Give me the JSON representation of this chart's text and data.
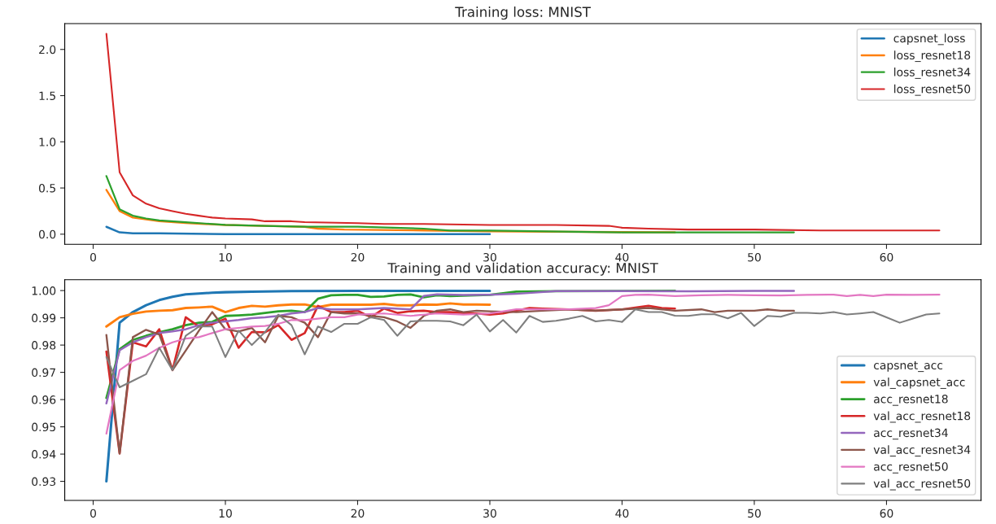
{
  "chart_data": [
    {
      "type": "line",
      "title": "Training loss: MNIST",
      "xlim": [
        -2.15,
        67.15
      ],
      "xticks": [
        0,
        10,
        20,
        30,
        40,
        50,
        60
      ],
      "ylim": [
        -0.11,
        2.28
      ],
      "yticks": [
        {
          "value": 0,
          "label": "0.0"
        },
        0.5,
        {
          "value": 1,
          "label": "1.0"
        },
        1.5,
        {
          "value": 2,
          "label": "2.0"
        }
      ],
      "legend": "top right",
      "grid": false,
      "series": [
        {
          "name": "capsnet_loss",
          "color": "#1f77b4",
          "x": [
            1,
            2,
            3,
            5,
            10,
            20,
            30
          ],
          "values": [
            0.08,
            0.02,
            0.01,
            0.01,
            0.0,
            0.0,
            0.0
          ]
        },
        {
          "name": "loss_resnet18",
          "color": "#ff7f0e",
          "x": [
            1,
            2,
            3,
            4,
            5,
            7,
            10,
            13,
            16,
            17,
            19,
            25,
            30,
            44
          ],
          "values": [
            0.48,
            0.25,
            0.18,
            0.16,
            0.14,
            0.12,
            0.1,
            0.09,
            0.08,
            0.06,
            0.05,
            0.04,
            0.03,
            0.02
          ]
        },
        {
          "name": "loss_resnet34",
          "color": "#2ca02c",
          "x": [
            1,
            2,
            3,
            4,
            5,
            7,
            10,
            13,
            16,
            20,
            25,
            27,
            30,
            40,
            53
          ],
          "values": [
            0.63,
            0.27,
            0.2,
            0.17,
            0.15,
            0.13,
            0.1,
            0.09,
            0.08,
            0.08,
            0.06,
            0.04,
            0.04,
            0.02,
            0.02
          ]
        },
        {
          "name": "loss_resnet50",
          "color": "#d62728",
          "x": [
            1,
            2,
            3,
            4,
            5,
            6,
            7,
            8,
            9,
            10,
            12,
            13,
            15,
            16,
            20,
            22,
            25,
            30,
            35,
            39,
            40,
            42,
            45,
            50,
            55,
            60,
            64
          ],
          "values": [
            2.17,
            0.67,
            0.42,
            0.33,
            0.28,
            0.25,
            0.22,
            0.2,
            0.18,
            0.17,
            0.16,
            0.14,
            0.14,
            0.13,
            0.12,
            0.11,
            0.11,
            0.1,
            0.1,
            0.09,
            0.07,
            0.06,
            0.05,
            0.05,
            0.04,
            0.04,
            0.04
          ]
        }
      ]
    },
    {
      "type": "line",
      "title": "Training and validation accuracy: MNIST",
      "xlim": [
        -2.15,
        67.15
      ],
      "xticks": [
        0,
        10,
        20,
        30,
        40,
        50,
        60
      ],
      "ylim": [
        0.923,
        1.004
      ],
      "yticks": [
        0.93,
        0.94,
        0.95,
        0.96,
        0.97,
        0.98,
        0.99,
        {
          "value": 1.0,
          "label": "1.00"
        }
      ],
      "legend": "bottom right",
      "grid": false,
      "series": [
        {
          "name": "capsnet_acc",
          "color": "#1f77b4",
          "x": [
            1,
            2,
            3,
            4,
            5,
            6,
            7,
            8,
            9,
            10,
            12,
            15,
            20,
            30
          ],
          "values": [
            0.93,
            0.9882,
            0.9921,
            0.9946,
            0.9965,
            0.9977,
            0.9986,
            0.9989,
            0.9992,
            0.9994,
            0.9996,
            0.9998,
            0.9999,
            0.9999
          ]
        },
        {
          "name": "val_capsnet_acc",
          "color": "#ff7f0e",
          "x": [
            1,
            2,
            3,
            4,
            5,
            6,
            7,
            8,
            9,
            10,
            11,
            12,
            13,
            14,
            15,
            16,
            17,
            18,
            19,
            20,
            21,
            22,
            23,
            24,
            25,
            26,
            27,
            28,
            29,
            30
          ],
          "values": [
            0.9868,
            0.9902,
            0.9915,
            0.9923,
            0.9926,
            0.9928,
            0.9936,
            0.9938,
            0.9941,
            0.9921,
            0.9936,
            0.9944,
            0.9941,
            0.9946,
            0.9949,
            0.9949,
            0.9939,
            0.9948,
            0.9948,
            0.9948,
            0.9948,
            0.9951,
            0.9946,
            0.9946,
            0.9949,
            0.9948,
            0.9953,
            0.9949,
            0.9949,
            0.9948
          ]
        },
        {
          "name": "acc_resnet18",
          "color": "#2ca02c",
          "x": [
            1,
            2,
            3,
            4,
            5,
            6,
            7,
            8,
            9,
            10,
            11,
            12,
            13,
            14,
            15,
            16,
            17,
            18,
            19,
            20,
            21,
            22,
            23,
            24,
            25,
            26,
            27,
            28,
            30,
            32,
            35,
            44
          ],
          "values": [
            0.9606,
            0.9785,
            0.9819,
            0.9834,
            0.9847,
            0.9858,
            0.9873,
            0.9882,
            0.9885,
            0.9907,
            0.9909,
            0.9912,
            0.9918,
            0.9924,
            0.9926,
            0.9921,
            0.997,
            0.9983,
            0.9984,
            0.9984,
            0.9977,
            0.9978,
            0.9984,
            0.9986,
            0.9975,
            0.9983,
            0.998,
            0.9981,
            0.9984,
            0.9996,
            0.9998,
            0.9999
          ]
        },
        {
          "name": "val_acc_resnet18",
          "color": "#d62728",
          "x": [
            1,
            2,
            3,
            4,
            5,
            6,
            7,
            8,
            9,
            10,
            11,
            12,
            13,
            14,
            15,
            16,
            17,
            18,
            19,
            20,
            21,
            22,
            23,
            24,
            25,
            26,
            27,
            28,
            29,
            30,
            31,
            32,
            33,
            34,
            36,
            38,
            40,
            42,
            43,
            44
          ],
          "values": [
            0.9776,
            0.9402,
            0.981,
            0.9795,
            0.9858,
            0.9708,
            0.9902,
            0.9868,
            0.9876,
            0.9897,
            0.979,
            0.9848,
            0.9847,
            0.9873,
            0.9819,
            0.9844,
            0.9944,
            0.9921,
            0.9921,
            0.9926,
            0.9902,
            0.9934,
            0.9918,
            0.9924,
            0.9926,
            0.9921,
            0.9921,
            0.9918,
            0.9916,
            0.9912,
            0.9916,
            0.9926,
            0.9936,
            0.9934,
            0.9931,
            0.9926,
            0.9931,
            0.9944,
            0.9936,
            0.9934
          ]
        },
        {
          "name": "acc_resnet34",
          "color": "#9467bd",
          "x": [
            1,
            2,
            3,
            4,
            5,
            6,
            7,
            8,
            9,
            10,
            11,
            12,
            13,
            14,
            15,
            16,
            17,
            18,
            19,
            20,
            22,
            24,
            25,
            26,
            28,
            30,
            32,
            35,
            40,
            45,
            50,
            53
          ],
          "values": [
            0.9586,
            0.9781,
            0.981,
            0.9829,
            0.9844,
            0.985,
            0.9858,
            0.9873,
            0.9882,
            0.9887,
            0.9892,
            0.9899,
            0.9902,
            0.9907,
            0.9916,
            0.9921,
            0.9936,
            0.9931,
            0.9931,
            0.9931,
            0.9936,
            0.9931,
            0.998,
            0.9986,
            0.9984,
            0.9985,
            0.9988,
            0.9998,
            0.9998,
            0.9997,
            0.9999,
            0.9999
          ]
        },
        {
          "name": "val_acc_resnet34",
          "color": "#8c564b",
          "x": [
            1,
            2,
            3,
            4,
            5,
            6,
            7,
            8,
            9,
            10,
            11,
            12,
            13,
            14,
            15,
            16,
            17,
            18,
            19,
            20,
            21,
            22,
            23,
            24,
            25,
            26,
            27,
            28,
            29,
            30,
            32,
            34,
            36,
            38,
            40,
            42,
            44,
            46,
            47,
            48,
            50,
            51,
            52,
            53
          ],
          "values": [
            0.9837,
            0.9402,
            0.9829,
            0.9856,
            0.9839,
            0.9708,
            0.978,
            0.9853,
            0.9921,
            0.9858,
            0.985,
            0.9863,
            0.981,
            0.9907,
            0.9902,
            0.9882,
            0.9829,
            0.9921,
            0.9916,
            0.9916,
            0.9907,
            0.9902,
            0.9887,
            0.9863,
            0.9907,
            0.9926,
            0.9931,
            0.9921,
            0.9926,
            0.9924,
            0.9921,
            0.9926,
            0.9931,
            0.9926,
            0.9931,
            0.9936,
            0.9926,
            0.9931,
            0.9921,
            0.9926,
            0.9926,
            0.9931,
            0.9926,
            0.9926
          ]
        },
        {
          "name": "acc_resnet50",
          "color": "#e377c2",
          "x": [
            1,
            2,
            3,
            4,
            5,
            6,
            7,
            8,
            9,
            10,
            11,
            12,
            13,
            14,
            15,
            16,
            17,
            18,
            19,
            20,
            22,
            24,
            26,
            28,
            30,
            32,
            34,
            36,
            38,
            39,
            40,
            41,
            42,
            44,
            46,
            48,
            50,
            52,
            54,
            56,
            57,
            58,
            59,
            60,
            62,
            64
          ],
          "values": [
            0.9475,
            0.9708,
            0.9742,
            0.9761,
            0.979,
            0.981,
            0.9824,
            0.9829,
            0.9844,
            0.9858,
            0.9863,
            0.9868,
            0.987,
            0.9878,
            0.9892,
            0.9892,
            0.9897,
            0.9902,
            0.9902,
            0.9912,
            0.9916,
            0.9907,
            0.9916,
            0.9912,
            0.9916,
            0.9931,
            0.9931,
            0.9931,
            0.9936,
            0.9946,
            0.998,
            0.9984,
            0.9985,
            0.998,
            0.9983,
            0.9984,
            0.9983,
            0.9982,
            0.9984,
            0.9985,
            0.998,
            0.9984,
            0.998,
            0.9985,
            0.9984,
            0.9985
          ]
        },
        {
          "name": "val_acc_resnet50",
          "color": "#7f7f7f",
          "x": [
            1,
            2,
            3,
            4,
            5,
            6,
            7,
            8,
            9,
            10,
            11,
            12,
            13,
            14,
            15,
            16,
            17,
            18,
            19,
            20,
            21,
            22,
            23,
            24,
            25,
            26,
            27,
            28,
            29,
            30,
            31,
            32,
            33,
            34,
            35,
            36,
            37,
            38,
            39,
            40,
            41,
            42,
            43,
            44,
            45,
            46,
            47,
            48,
            49,
            50,
            51,
            52,
            53,
            54,
            55,
            56,
            57,
            58,
            59,
            60,
            61,
            62,
            63,
            64
          ],
          "values": [
            0.9756,
            0.9645,
            0.9669,
            0.9693,
            0.979,
            0.9708,
            0.9834,
            0.9868,
            0.9868,
            0.9756,
            0.9853,
            0.98,
            0.9848,
            0.9912,
            0.9873,
            0.9766,
            0.9868,
            0.9848,
            0.9878,
            0.9878,
            0.9902,
            0.9892,
            0.9834,
            0.9887,
            0.9889,
            0.9889,
            0.9887,
            0.9873,
            0.9912,
            0.985,
            0.9892,
            0.9846,
            0.9907,
            0.9885,
            0.9889,
            0.9897,
            0.9907,
            0.9887,
            0.9892,
            0.9885,
            0.9931,
            0.9921,
            0.9921,
            0.9908,
            0.9907,
            0.9913,
            0.9913,
            0.9898,
            0.9918,
            0.987,
            0.9907,
            0.9904,
            0.9918,
            0.9918,
            0.9916,
            0.9921,
            0.9912,
            0.9916,
            0.9921,
            0.9902,
            0.9882,
            0.9897,
            0.9912,
            0.9916
          ]
        }
      ]
    }
  ]
}
